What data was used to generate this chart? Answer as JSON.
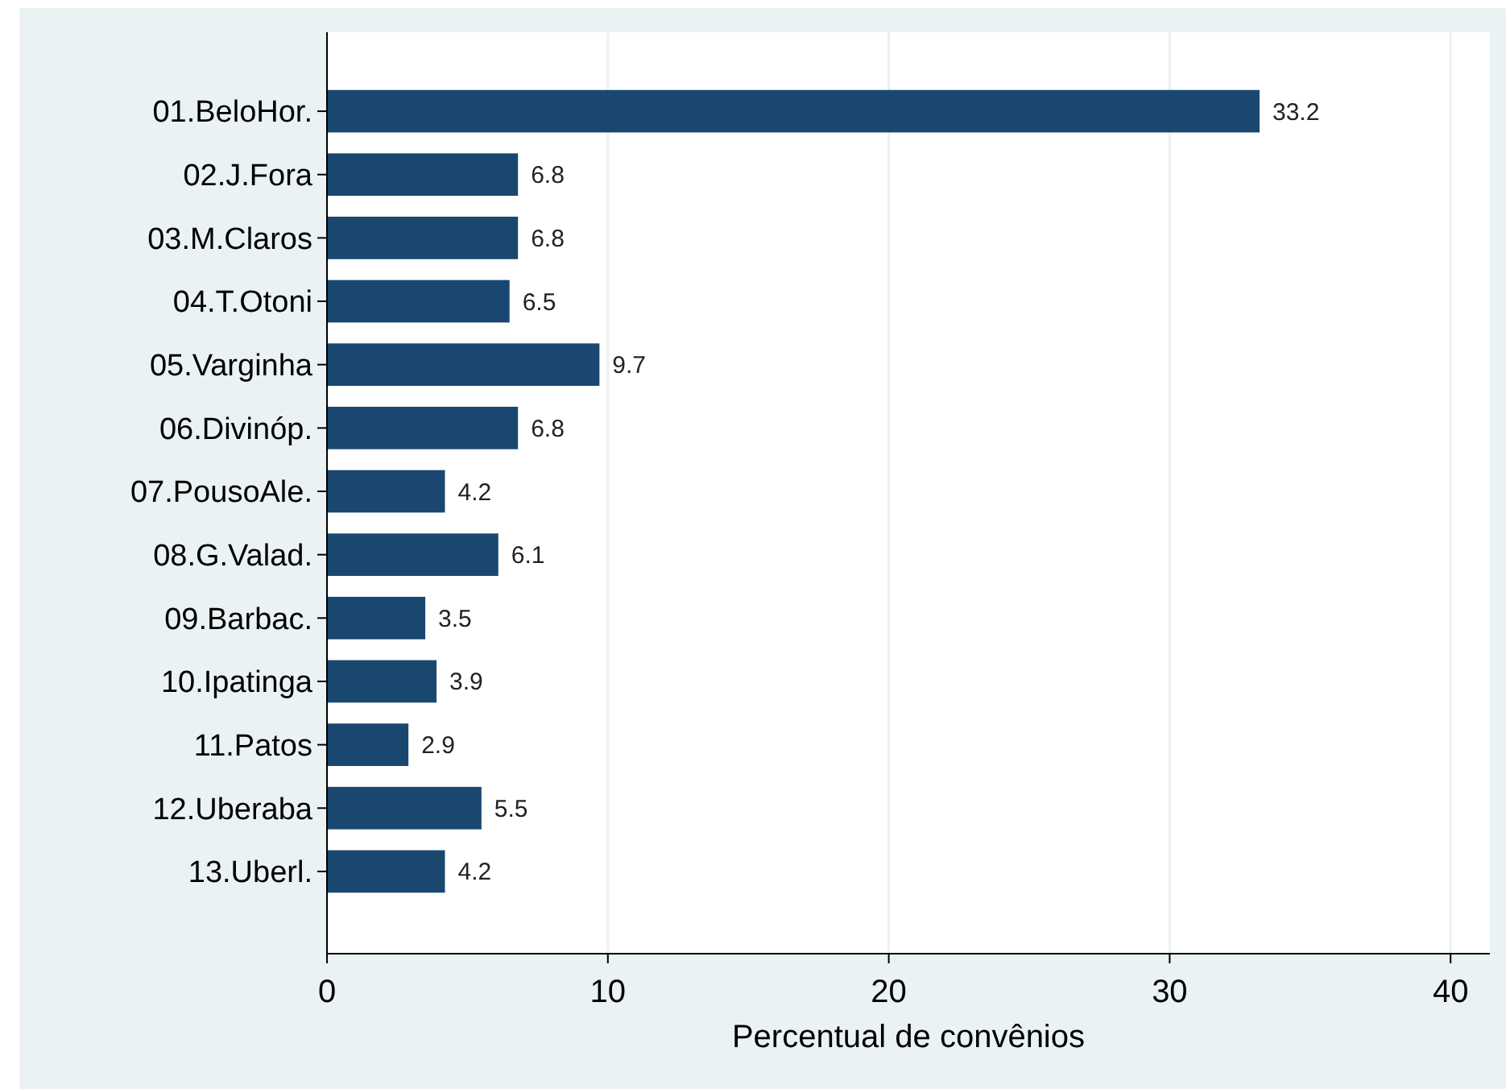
{
  "chart_data": {
    "type": "bar",
    "orientation": "horizontal",
    "xlabel": "Percentual de convênios",
    "categories": [
      "01.BeloHor.",
      "02.J.Fora",
      "03.M.Claros",
      "04.T.Otoni",
      "05.Varginha",
      "06.Divinóp.",
      "07.PousoAle.",
      "08.G.Valad.",
      "09.Barbac.",
      "10.Ipatinga",
      "11.Patos",
      "12.Uberaba",
      "13.Uberl."
    ],
    "values": [
      33.2,
      6.8,
      6.8,
      6.5,
      9.7,
      6.8,
      4.2,
      6.1,
      3.5,
      3.9,
      2.9,
      5.5,
      4.2
    ],
    "color": "#1a476f",
    "xlim": [
      0,
      41.4
    ],
    "xticks": [
      0,
      10,
      20,
      30,
      40
    ],
    "grid": "x",
    "data_labels": true
  }
}
